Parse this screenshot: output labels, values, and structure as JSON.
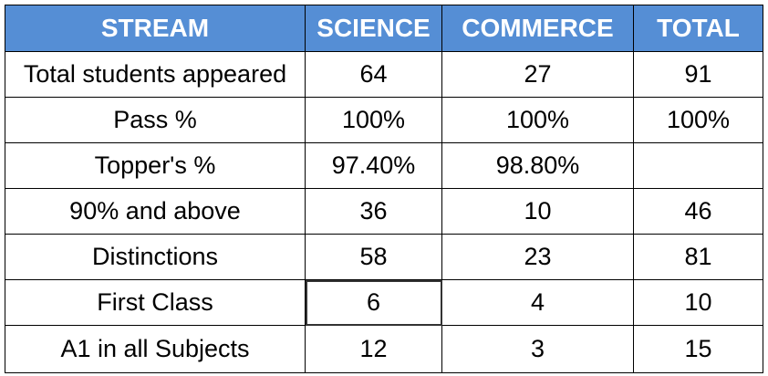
{
  "table": {
    "header": [
      "STREAM",
      "SCIENCE",
      "COMMERCE",
      "TOTAL"
    ],
    "rows": [
      [
        "Total students appeared",
        "64",
        "27",
        "91"
      ],
      [
        "Pass %",
        "100%",
        "100%",
        "100%"
      ],
      [
        "Topper's %",
        "97.40%",
        "98.80%"
      ],
      [
        "90% and above",
        "36",
        "10",
        "46"
      ],
      [
        "Distinctions",
        "58",
        "23",
        "81"
      ],
      [
        "First Class",
        "6",
        "4",
        "10"
      ],
      [
        "A1 in all Subjects",
        "12",
        "3",
        "15"
      ]
    ]
  }
}
